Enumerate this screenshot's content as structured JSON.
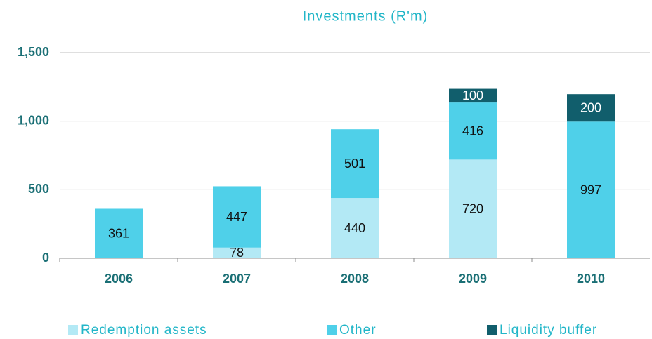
{
  "chart_data": {
    "type": "stacked_bar",
    "title": "Investments (R'm)",
    "categories": [
      "2006",
      "2007",
      "2008",
      "2009",
      "2010"
    ],
    "series": [
      {
        "name": "Redemption assets",
        "color": "#b3e9f5",
        "values": [
          null,
          78,
          440,
          720,
          null
        ]
      },
      {
        "name": "Other",
        "color": "#4fd0e9",
        "values": [
          361,
          447,
          501,
          416,
          997
        ]
      },
      {
        "name": "Liquidity buffer",
        "color": "#115e6c",
        "values": [
          null,
          null,
          null,
          100,
          200
        ]
      }
    ],
    "ylim": [
      0,
      1500
    ],
    "yticks": [
      0,
      500,
      {
        "value": 1000,
        "label": "1,000"
      },
      {
        "value": 1500,
        "label": "1,500"
      }
    ],
    "grid": true,
    "legend": "bottom"
  }
}
